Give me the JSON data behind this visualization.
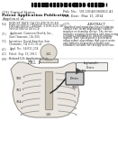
{
  "background_color": "#ffffff",
  "barcode_color": "#111111",
  "header_left_1": "(19) United States",
  "header_left_2": "Patent Application Publication",
  "header_left_3": "Angelon et al.",
  "header_right_1": "Pub. No.:  US 2014/0066862 A1",
  "header_right_2": "Pub. Date:  Mar. 13, 2014",
  "left_items": [
    [
      "(54)",
      "ROBUST RATE CALCULATION IN AN"
    ],
    [
      "",
      "IMPLANTABLE CARDIAC STIMULUS OR"
    ],
    [
      "",
      "MONITORING DEVICE"
    ],
    [
      "",
      ""
    ],
    [
      "(71)",
      "Applicant: Cameron Health, Inc.,"
    ],
    [
      "",
      "San Clemente, CA (US)"
    ],
    [
      "",
      ""
    ],
    [
      "(72)",
      "Inventors: David Angelon, San"
    ],
    [
      "",
      "Clemente, CA (US); et al."
    ],
    [
      "",
      ""
    ],
    [
      "(21)",
      "Appl. No.: 14/031,234"
    ],
    [
      "",
      ""
    ],
    [
      "(22)",
      "Filed:  Sep. 19, 2013"
    ],
    [
      "",
      ""
    ],
    [
      "(60)",
      "Related U.S. Application Data"
    ]
  ],
  "abstract_header": "(57)                  ABSTRACT",
  "abstract_lines": [
    "A method and apparatus for calculating",
    "cardiac rate in an implantable cardiac",
    "monitor or stimulus device. The device",
    "includes sensing electrodes and processing",
    "circuitry configured to analyze cardiac",
    "signals. Rate calculation is performed",
    "using robust algorithms that reject noise",
    "and artifacts to provide reliable rate",
    "estimates suitable for therapy decisions."
  ],
  "fig_label": "FIG. 1",
  "body_fill": "#e8e4dc",
  "body_edge": "#777777",
  "rib_color": "#999999",
  "sternum_fill": "#c8c0b0",
  "sternum_edge": "#888888",
  "device_fill": "#cccccc",
  "device_edge": "#333333",
  "lead_color": "#222222",
  "ann_fill": "#f0f0ee",
  "ann_edge": "#555555",
  "label_color": "#111111"
}
